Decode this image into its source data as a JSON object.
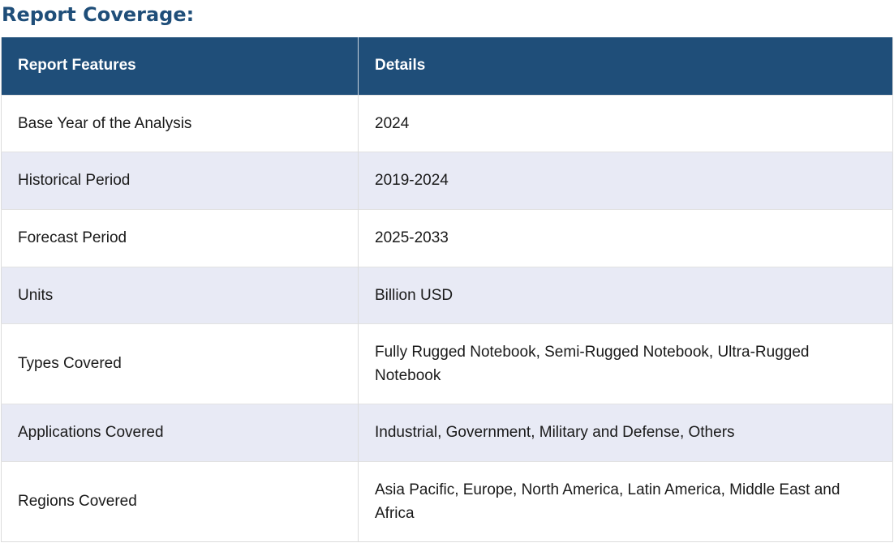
{
  "heading": "Report Coverage:",
  "table": {
    "headers": [
      "Report Features",
      "Details"
    ],
    "rows": [
      {
        "feature": "Base Year of the Analysis",
        "details": "2024"
      },
      {
        "feature": "Historical Period",
        "details": "2019-2024"
      },
      {
        "feature": "Forecast Period",
        "details": "2025-2033"
      },
      {
        "feature": "Units",
        "details": "Billion USD"
      },
      {
        "feature": "Types Covered",
        "details": "Fully Rugged Notebook, Semi-Rugged Notebook, Ultra-Rugged Notebook"
      },
      {
        "feature": "Applications Covered",
        "details": "Industrial, Government, Military and Defense, Others"
      },
      {
        "feature": "Regions Covered",
        "details": "Asia Pacific, Europe, North America, Latin America, Middle East and Africa"
      }
    ]
  },
  "colors": {
    "heading": "#1f4e79",
    "header_bg": "#1f4e79",
    "header_text": "#ffffff",
    "row_alt_bg": "#e8eaf5",
    "row_bg": "#ffffff"
  }
}
